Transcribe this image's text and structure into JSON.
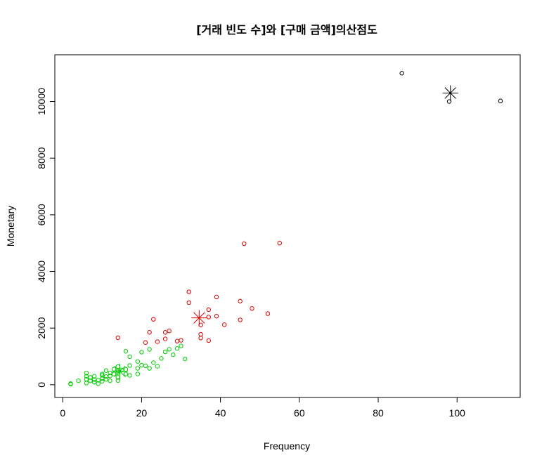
{
  "chart_data": {
    "type": "scatter",
    "title": "[거래 빈도 수]와 [구매 금액]의산점도",
    "xlabel": "Frequency",
    "ylabel": "Monetary",
    "xlim": [
      -2,
      116
    ],
    "ylim": [
      -450,
      11650
    ],
    "xticks": [
      0,
      20,
      40,
      60,
      80,
      100
    ],
    "yticks": [
      0,
      2000,
      4000,
      6000,
      8000,
      10000
    ],
    "grid": false,
    "legend": "none",
    "series": [
      {
        "color": "#000000",
        "points": [
          [
            86,
            11000
          ],
          [
            98,
            10000
          ],
          [
            111,
            10020
          ]
        ],
        "center": [
          98.3,
          10300
        ]
      },
      {
        "color": "#DF0000",
        "points": [
          [
            14,
            1660
          ],
          [
            21,
            1490
          ],
          [
            22,
            1850
          ],
          [
            23,
            2310
          ],
          [
            24,
            1520
          ],
          [
            26,
            1850
          ],
          [
            26,
            1620
          ],
          [
            27,
            1900
          ],
          [
            29,
            1540
          ],
          [
            30,
            1570
          ],
          [
            32,
            3280
          ],
          [
            32,
            2900
          ],
          [
            35,
            2110
          ],
          [
            35,
            1780
          ],
          [
            35,
            1650
          ],
          [
            37,
            2650
          ],
          [
            37,
            2390
          ],
          [
            37,
            1560
          ],
          [
            39,
            3100
          ],
          [
            39,
            2420
          ],
          [
            41,
            2120
          ],
          [
            45,
            2950
          ],
          [
            45,
            2290
          ],
          [
            46,
            4980
          ],
          [
            48,
            2690
          ],
          [
            52,
            2510
          ],
          [
            55,
            5000
          ]
        ],
        "center": [
          34.6,
          2360
        ]
      },
      {
        "color": "#00CD00",
        "points": [
          [
            2,
            40
          ],
          [
            2,
            20
          ],
          [
            4,
            140
          ],
          [
            6,
            60
          ],
          [
            6,
            190
          ],
          [
            6,
            300
          ],
          [
            6,
            410
          ],
          [
            7,
            140
          ],
          [
            7,
            260
          ],
          [
            8,
            180
          ],
          [
            8,
            90
          ],
          [
            8,
            300
          ],
          [
            9,
            40
          ],
          [
            9,
            160
          ],
          [
            10,
            220
          ],
          [
            10,
            330
          ],
          [
            10,
            380
          ],
          [
            10,
            120
          ],
          [
            11,
            190
          ],
          [
            11,
            290
          ],
          [
            11,
            500
          ],
          [
            12,
            140
          ],
          [
            12,
            420
          ],
          [
            12,
            310
          ],
          [
            13,
            550
          ],
          [
            13,
            380
          ],
          [
            14,
            150
          ],
          [
            14,
            260
          ],
          [
            14,
            640
          ],
          [
            14,
            430
          ],
          [
            14,
            500
          ],
          [
            15,
            520
          ],
          [
            16,
            380
          ],
          [
            16,
            540
          ],
          [
            16,
            1180
          ],
          [
            17,
            330
          ],
          [
            17,
            680
          ],
          [
            17,
            990
          ],
          [
            19,
            380
          ],
          [
            19,
            580
          ],
          [
            19,
            820
          ],
          [
            20,
            690
          ],
          [
            20,
            1150
          ],
          [
            21,
            670
          ],
          [
            22,
            580
          ],
          [
            22,
            1250
          ],
          [
            23,
            780
          ],
          [
            24,
            650
          ],
          [
            25,
            930
          ],
          [
            26,
            1160
          ],
          [
            27,
            1250
          ],
          [
            28,
            1060
          ],
          [
            29,
            1280
          ],
          [
            30,
            1370
          ],
          [
            31,
            910
          ]
        ],
        "center": [
          14.5,
          470
        ]
      }
    ]
  }
}
